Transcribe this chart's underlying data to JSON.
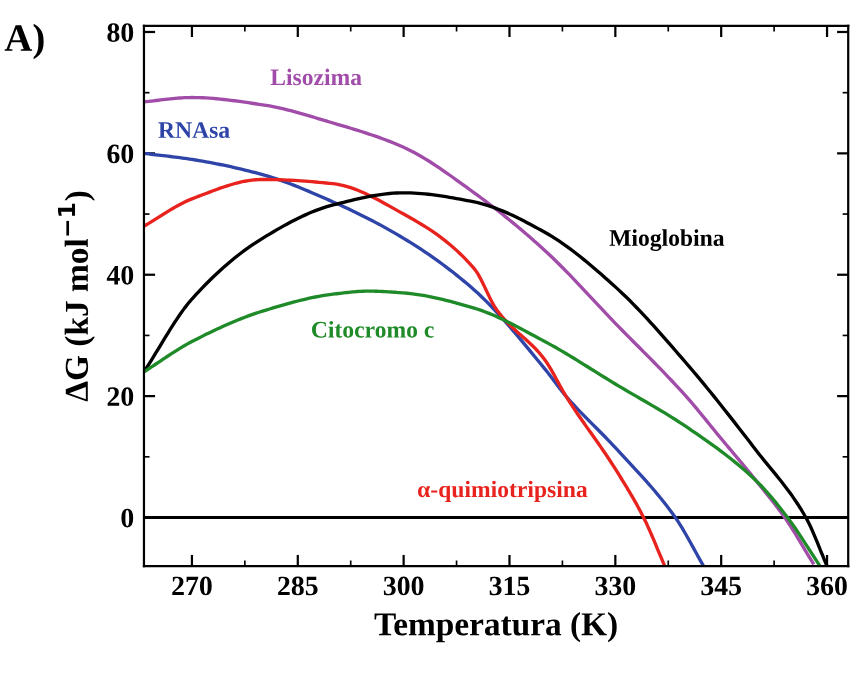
{
  "chart_data": {
    "type": "line",
    "title": "A)",
    "xlabel": "Temperatura (K)",
    "ylabel": "ΔG (kJ mol$^{−1}$)",
    "xlim": [
      263.2,
      363
    ],
    "ylim": [
      -8,
      81
    ],
    "xticks": [
      270,
      285,
      300,
      315,
      330,
      345,
      360
    ],
    "yticks": [
      0,
      20,
      40,
      60,
      80
    ],
    "ref_lines": [
      {
        "axis": "y",
        "value": 0,
        "color": "#000000"
      }
    ],
    "grid": false,
    "legend": false,
    "marker": "none",
    "line_style": "solid",
    "series": [
      {
        "name": "Lisozima",
        "color": "#a04ca8",
        "x": [
          263.2,
          270,
          280,
          290,
          300,
          310,
          320,
          330,
          340,
          345,
          350,
          354,
          358
        ],
        "values": [
          68.5,
          69.2,
          68,
          65,
          61,
          53.5,
          44,
          32,
          20,
          13,
          6,
          0,
          -7.5
        ]
      },
      {
        "name": "RNAsa",
        "color": "#2e44a8",
        "x": [
          263.2,
          270,
          280,
          290,
          300,
          310,
          320,
          323,
          330,
          338.5,
          342.5
        ],
        "values": [
          60,
          59,
          56.5,
          52,
          46,
          37.5,
          24.5,
          20,
          11.5,
          0,
          -8
        ]
      },
      {
        "name": "α-quimiotripsina",
        "color": "#e8231e",
        "x": [
          263.2,
          270,
          280,
          290,
          300,
          310,
          313.2,
          320,
          323,
          330,
          334,
          337
        ],
        "values": [
          48,
          52.5,
          55.7,
          55,
          50,
          41,
          34.2,
          26,
          20,
          8,
          0,
          -8
        ]
      },
      {
        "name": "Mioglobina",
        "color": "#000000",
        "x": [
          263.2,
          270,
          280,
          290,
          300,
          310,
          320,
          330,
          340,
          350,
          357,
          360
        ],
        "values": [
          24,
          36,
          46,
          51.5,
          53.5,
          52,
          47,
          38,
          25.5,
          11,
          0,
          -8
        ]
      },
      {
        "name": "Citocromo c",
        "color": "#1e8a28",
        "x": [
          263.2,
          270,
          280,
          290,
          295,
          300,
          310,
          320,
          330,
          340,
          350,
          354.4,
          359
        ],
        "values": [
          24,
          29,
          34,
          36.8,
          37.3,
          37,
          34.5,
          29,
          22,
          15,
          6,
          0,
          -8
        ]
      }
    ]
  }
}
